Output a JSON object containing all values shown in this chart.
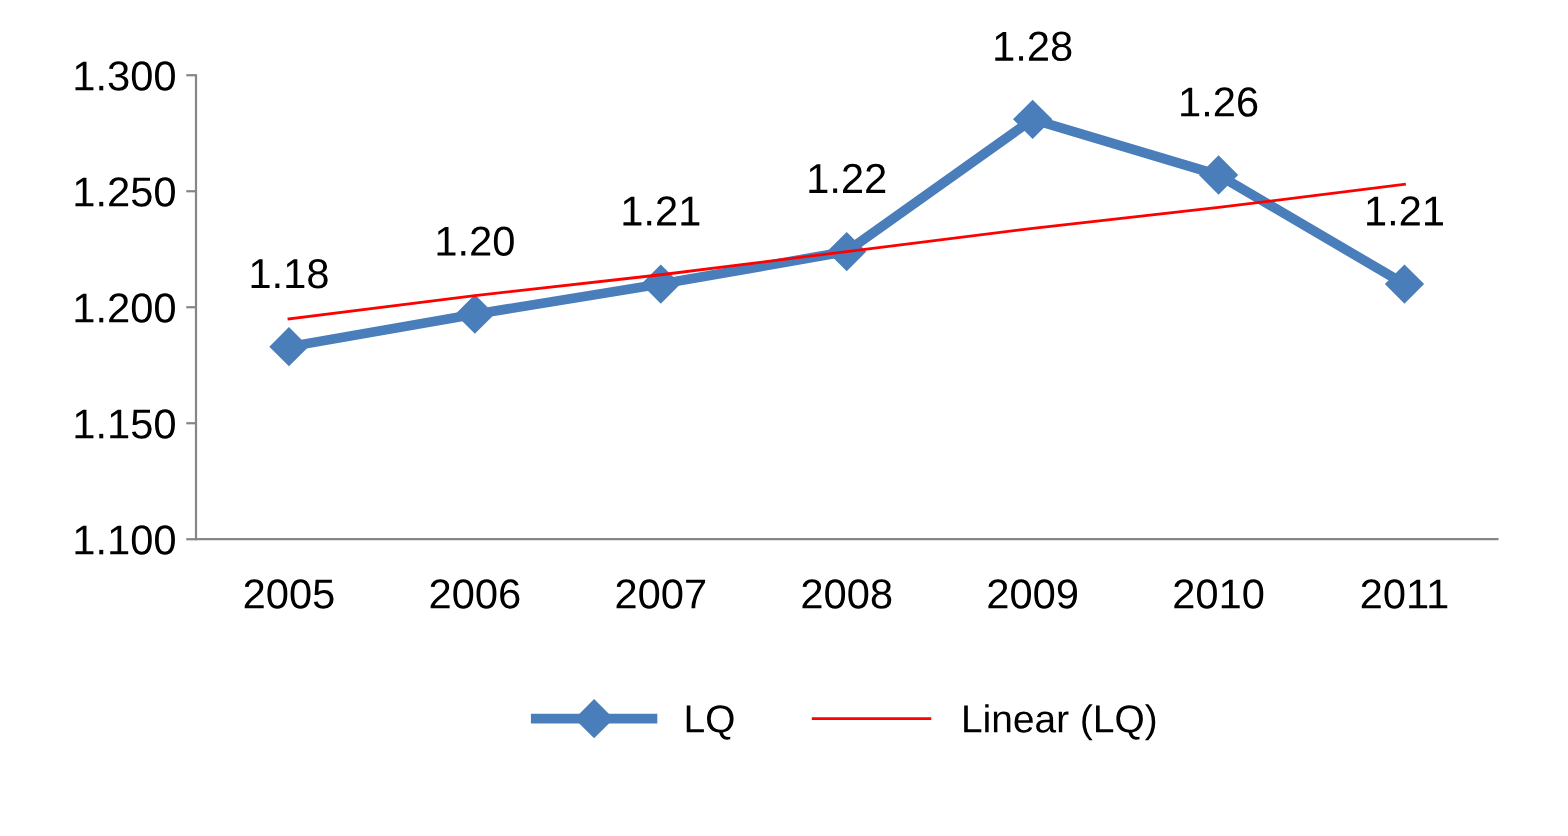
{
  "chart_data": {
    "type": "line",
    "categories": [
      "2005",
      "2006",
      "2007",
      "2008",
      "2009",
      "2010",
      "2011"
    ],
    "series": [
      {
        "name": "LQ",
        "color": "#4a7ebb",
        "marker": "diamond",
        "values": [
          1.183,
          1.197,
          1.21,
          1.224,
          1.281,
          1.257,
          1.21
        ],
        "value_labels": [
          "1.18",
          "1.20",
          "1.21",
          "1.22",
          "1.28",
          "1.26",
          "1.21"
        ]
      },
      {
        "name": "Linear (LQ)",
        "color": "#ff0000",
        "marker": "none",
        "values": [
          1.195,
          1.205,
          1.214,
          1.224,
          1.234,
          1.243,
          1.253
        ]
      }
    ],
    "ylim": [
      1.1,
      1.3
    ],
    "yticks": [
      {
        "value": 1.1,
        "label": "1.100"
      },
      {
        "value": 1.15,
        "label": "1.150"
      },
      {
        "value": 1.2,
        "label": "1.200"
      },
      {
        "value": 1.25,
        "label": "1.250"
      },
      {
        "value": 1.3,
        "label": "1.300"
      }
    ],
    "grid": false,
    "legend": "bottom"
  }
}
